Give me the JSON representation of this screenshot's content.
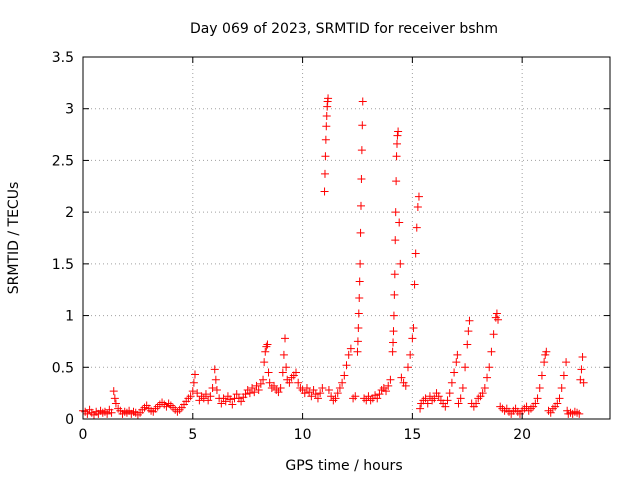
{
  "chart_data": {
    "type": "scatter",
    "title": "Day 069 of 2023, SRMTID for receiver bshm",
    "xlabel": "GPS time / hours",
    "ylabel": "SRMTID / TECUs",
    "xlim": [
      0,
      24
    ],
    "ylim": [
      0,
      3.5
    ],
    "xticks": [
      0,
      5,
      10,
      15,
      20
    ],
    "yticks": [
      0,
      0.5,
      1,
      1.5,
      2,
      2.5,
      3,
      3.5
    ],
    "ytick_labels": [
      "0",
      "0.5",
      "1",
      "1.5",
      "2",
      "2.5",
      "3",
      "3.5"
    ],
    "grid": true,
    "marker": "+",
    "color": "#ff0000",
    "series": [
      {
        "name": "SRMTID",
        "points": [
          [
            0.0,
            0.08
          ],
          [
            0.1,
            0.07
          ],
          [
            0.2,
            0.05
          ],
          [
            0.3,
            0.09
          ],
          [
            0.4,
            0.06
          ],
          [
            0.5,
            0.04
          ],
          [
            0.6,
            0.07
          ],
          [
            0.7,
            0.05
          ],
          [
            0.8,
            0.08
          ],
          [
            0.9,
            0.06
          ],
          [
            1.0,
            0.07
          ],
          [
            1.1,
            0.05
          ],
          [
            1.2,
            0.09
          ],
          [
            1.3,
            0.06
          ],
          [
            1.4,
            0.27
          ],
          [
            1.45,
            0.2
          ],
          [
            1.5,
            0.15
          ],
          [
            1.6,
            0.1
          ],
          [
            1.7,
            0.08
          ],
          [
            1.8,
            0.05
          ],
          [
            1.9,
            0.07
          ],
          [
            2.0,
            0.06
          ],
          [
            2.1,
            0.08
          ],
          [
            2.2,
            0.05
          ],
          [
            2.3,
            0.07
          ],
          [
            2.4,
            0.06
          ],
          [
            2.5,
            0.04
          ],
          [
            2.6,
            0.06
          ],
          [
            2.7,
            0.09
          ],
          [
            2.8,
            0.11
          ],
          [
            2.9,
            0.13
          ],
          [
            3.0,
            0.1
          ],
          [
            3.1,
            0.08
          ],
          [
            3.2,
            0.07
          ],
          [
            3.3,
            0.1
          ],
          [
            3.4,
            0.12
          ],
          [
            3.5,
            0.14
          ],
          [
            3.6,
            0.16
          ],
          [
            3.7,
            0.14
          ],
          [
            3.8,
            0.12
          ],
          [
            3.9,
            0.15
          ],
          [
            4.0,
            0.13
          ],
          [
            4.1,
            0.11
          ],
          [
            4.2,
            0.09
          ],
          [
            4.3,
            0.07
          ],
          [
            4.4,
            0.09
          ],
          [
            4.5,
            0.11
          ],
          [
            4.6,
            0.14
          ],
          [
            4.7,
            0.17
          ],
          [
            4.8,
            0.2
          ],
          [
            4.9,
            0.22
          ],
          [
            5.0,
            0.27
          ],
          [
            5.05,
            0.35
          ],
          [
            5.1,
            0.43
          ],
          [
            5.2,
            0.25
          ],
          [
            5.3,
            0.18
          ],
          [
            5.4,
            0.22
          ],
          [
            5.5,
            0.2
          ],
          [
            5.6,
            0.24
          ],
          [
            5.7,
            0.18
          ],
          [
            5.8,
            0.22
          ],
          [
            5.9,
            0.3
          ],
          [
            6.0,
            0.48
          ],
          [
            6.05,
            0.38
          ],
          [
            6.1,
            0.28
          ],
          [
            6.2,
            0.2
          ],
          [
            6.3,
            0.15
          ],
          [
            6.4,
            0.2
          ],
          [
            6.5,
            0.17
          ],
          [
            6.6,
            0.22
          ],
          [
            6.7,
            0.19
          ],
          [
            6.8,
            0.14
          ],
          [
            6.9,
            0.2
          ],
          [
            7.0,
            0.24
          ],
          [
            7.1,
            0.2
          ],
          [
            7.2,
            0.17
          ],
          [
            7.3,
            0.21
          ],
          [
            7.4,
            0.24
          ],
          [
            7.5,
            0.28
          ],
          [
            7.6,
            0.25
          ],
          [
            7.7,
            0.3
          ],
          [
            7.8,
            0.26
          ],
          [
            7.9,
            0.32
          ],
          [
            8.0,
            0.28
          ],
          [
            8.1,
            0.34
          ],
          [
            8.2,
            0.38
          ],
          [
            8.25,
            0.55
          ],
          [
            8.3,
            0.65
          ],
          [
            8.35,
            0.7
          ],
          [
            8.4,
            0.72
          ],
          [
            8.45,
            0.45
          ],
          [
            8.5,
            0.35
          ],
          [
            8.6,
            0.3
          ],
          [
            8.7,
            0.32
          ],
          [
            8.8,
            0.28
          ],
          [
            8.9,
            0.26
          ],
          [
            9.0,
            0.3
          ],
          [
            9.1,
            0.45
          ],
          [
            9.15,
            0.62
          ],
          [
            9.2,
            0.78
          ],
          [
            9.25,
            0.5
          ],
          [
            9.3,
            0.38
          ],
          [
            9.4,
            0.35
          ],
          [
            9.5,
            0.4
          ],
          [
            9.6,
            0.42
          ],
          [
            9.7,
            0.45
          ],
          [
            9.8,
            0.35
          ],
          [
            9.9,
            0.3
          ],
          [
            10.0,
            0.28
          ],
          [
            10.1,
            0.25
          ],
          [
            10.2,
            0.3
          ],
          [
            10.3,
            0.26
          ],
          [
            10.4,
            0.22
          ],
          [
            10.5,
            0.28
          ],
          [
            10.6,
            0.24
          ],
          [
            10.7,
            0.2
          ],
          [
            10.8,
            0.25
          ],
          [
            10.9,
            0.3
          ],
          [
            11.0,
            2.2
          ],
          [
            11.02,
            2.37
          ],
          [
            11.04,
            2.54
          ],
          [
            11.06,
            2.7
          ],
          [
            11.08,
            2.83
          ],
          [
            11.1,
            2.93
          ],
          [
            11.12,
            3.02
          ],
          [
            11.14,
            3.07
          ],
          [
            11.16,
            3.1
          ],
          [
            11.2,
            0.28
          ],
          [
            11.3,
            0.22
          ],
          [
            11.4,
            0.18
          ],
          [
            11.5,
            0.2
          ],
          [
            11.6,
            0.25
          ],
          [
            11.7,
            0.3
          ],
          [
            11.8,
            0.35
          ],
          [
            11.9,
            0.42
          ],
          [
            12.0,
            0.52
          ],
          [
            12.1,
            0.62
          ],
          [
            12.2,
            0.68
          ],
          [
            12.3,
            0.2
          ],
          [
            12.4,
            0.22
          ],
          [
            12.5,
            0.65
          ],
          [
            12.52,
            0.75
          ],
          [
            12.54,
            0.88
          ],
          [
            12.56,
            1.02
          ],
          [
            12.58,
            1.17
          ],
          [
            12.6,
            1.33
          ],
          [
            12.62,
            1.5
          ],
          [
            12.64,
            1.8
          ],
          [
            12.66,
            2.06
          ],
          [
            12.68,
            2.32
          ],
          [
            12.7,
            2.6
          ],
          [
            12.72,
            2.84
          ],
          [
            12.74,
            3.07
          ],
          [
            12.8,
            0.2
          ],
          [
            12.9,
            0.18
          ],
          [
            13.0,
            0.22
          ],
          [
            13.1,
            0.18
          ],
          [
            13.2,
            0.2
          ],
          [
            13.3,
            0.23
          ],
          [
            13.4,
            0.2
          ],
          [
            13.5,
            0.24
          ],
          [
            13.6,
            0.28
          ],
          [
            13.7,
            0.3
          ],
          [
            13.8,
            0.27
          ],
          [
            13.9,
            0.32
          ],
          [
            14.0,
            0.38
          ],
          [
            14.1,
            0.65
          ],
          [
            14.12,
            0.74
          ],
          [
            14.14,
            0.85
          ],
          [
            14.16,
            1.0
          ],
          [
            14.18,
            1.2
          ],
          [
            14.2,
            1.4
          ],
          [
            14.22,
            1.73
          ],
          [
            14.24,
            2.0
          ],
          [
            14.26,
            2.3
          ],
          [
            14.28,
            2.54
          ],
          [
            14.3,
            2.66
          ],
          [
            14.32,
            2.74
          ],
          [
            14.35,
            2.78
          ],
          [
            14.4,
            1.9
          ],
          [
            14.45,
            1.5
          ],
          [
            14.5,
            0.4
          ],
          [
            14.6,
            0.35
          ],
          [
            14.7,
            0.32
          ],
          [
            14.8,
            0.5
          ],
          [
            14.9,
            0.62
          ],
          [
            15.0,
            0.78
          ],
          [
            15.05,
            0.88
          ],
          [
            15.1,
            1.3
          ],
          [
            15.15,
            1.6
          ],
          [
            15.2,
            1.85
          ],
          [
            15.25,
            2.05
          ],
          [
            15.3,
            2.15
          ],
          [
            15.35,
            0.1
          ],
          [
            15.4,
            0.15
          ],
          [
            15.5,
            0.18
          ],
          [
            15.6,
            0.2
          ],
          [
            15.7,
            0.15
          ],
          [
            15.8,
            0.22
          ],
          [
            15.9,
            0.18
          ],
          [
            16.0,
            0.2
          ],
          [
            16.1,
            0.25
          ],
          [
            16.2,
            0.22
          ],
          [
            16.3,
            0.18
          ],
          [
            16.4,
            0.15
          ],
          [
            16.5,
            0.12
          ],
          [
            16.6,
            0.18
          ],
          [
            16.7,
            0.25
          ],
          [
            16.8,
            0.35
          ],
          [
            16.9,
            0.45
          ],
          [
            17.0,
            0.55
          ],
          [
            17.05,
            0.62
          ],
          [
            17.1,
            0.15
          ],
          [
            17.2,
            0.2
          ],
          [
            17.3,
            0.3
          ],
          [
            17.4,
            0.5
          ],
          [
            17.5,
            0.72
          ],
          [
            17.55,
            0.85
          ],
          [
            17.6,
            0.95
          ],
          [
            17.7,
            0.15
          ],
          [
            17.8,
            0.12
          ],
          [
            17.9,
            0.15
          ],
          [
            18.0,
            0.2
          ],
          [
            18.1,
            0.22
          ],
          [
            18.2,
            0.25
          ],
          [
            18.3,
            0.3
          ],
          [
            18.4,
            0.4
          ],
          [
            18.5,
            0.5
          ],
          [
            18.6,
            0.65
          ],
          [
            18.7,
            0.82
          ],
          [
            18.8,
            0.98
          ],
          [
            18.85,
            1.02
          ],
          [
            18.9,
            0.96
          ],
          [
            19.0,
            0.12
          ],
          [
            19.1,
            0.1
          ],
          [
            19.2,
            0.08
          ],
          [
            19.3,
            0.1
          ],
          [
            19.4,
            0.07
          ],
          [
            19.5,
            0.05
          ],
          [
            19.6,
            0.08
          ],
          [
            19.7,
            0.1
          ],
          [
            19.8,
            0.07
          ],
          [
            19.9,
            0.05
          ],
          [
            20.0,
            0.08
          ],
          [
            20.1,
            0.1
          ],
          [
            20.2,
            0.12
          ],
          [
            20.3,
            0.08
          ],
          [
            20.4,
            0.1
          ],
          [
            20.5,
            0.12
          ],
          [
            20.6,
            0.15
          ],
          [
            20.7,
            0.2
          ],
          [
            20.8,
            0.3
          ],
          [
            20.9,
            0.42
          ],
          [
            21.0,
            0.55
          ],
          [
            21.05,
            0.62
          ],
          [
            21.1,
            0.65
          ],
          [
            21.2,
            0.08
          ],
          [
            21.3,
            0.06
          ],
          [
            21.4,
            0.1
          ],
          [
            21.5,
            0.12
          ],
          [
            21.6,
            0.15
          ],
          [
            21.7,
            0.2
          ],
          [
            21.8,
            0.3
          ],
          [
            21.9,
            0.42
          ],
          [
            22.0,
            0.55
          ],
          [
            22.05,
            0.08
          ],
          [
            22.1,
            0.05
          ],
          [
            22.2,
            0.06
          ],
          [
            22.3,
            0.05
          ],
          [
            22.4,
            0.07
          ],
          [
            22.5,
            0.06
          ],
          [
            22.6,
            0.05
          ],
          [
            22.65,
            0.38
          ],
          [
            22.7,
            0.48
          ],
          [
            22.75,
            0.6
          ],
          [
            22.8,
            0.35
          ]
        ]
      }
    ]
  }
}
